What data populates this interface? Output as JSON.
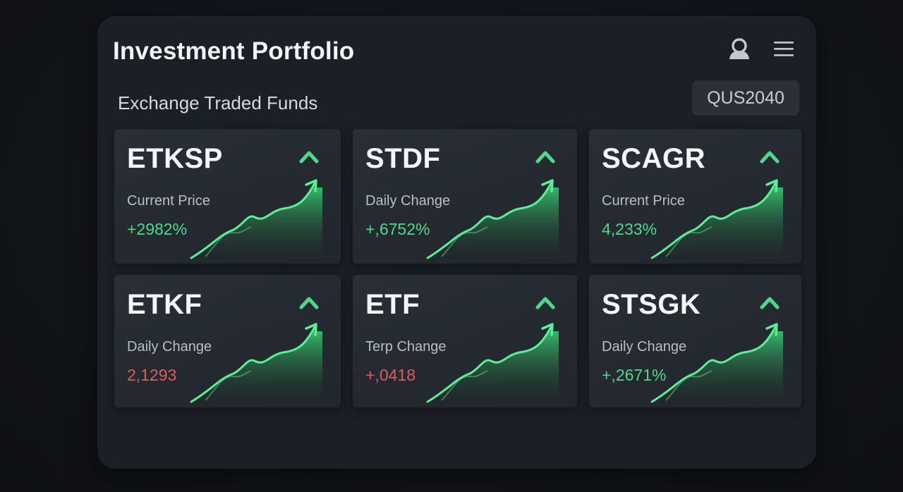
{
  "header": {
    "title": "Investment Portfolio",
    "user_icon": "user-icon",
    "menu_icon": "hamburger-menu-icon"
  },
  "section": {
    "title": "Exchange Traded Funds",
    "code": "QUS2040"
  },
  "colors": {
    "positive": "#4fd88a",
    "negative": "#e25b5b",
    "chart_fill": "#2fb866",
    "chart_line": "#5cef95"
  },
  "funds": [
    {
      "ticker": "ETKSP",
      "label": "Current Price",
      "value": "+2982%",
      "trend": "positive",
      "icon": "chevron-up-icon"
    },
    {
      "ticker": "STDF",
      "label": "Daily Change",
      "value": "+,6752%",
      "trend": "positive",
      "icon": "chevron-up-icon"
    },
    {
      "ticker": "SCAGR",
      "label": "Current Price",
      "value": "4,233%",
      "trend": "positive",
      "icon": "chevron-up-icon"
    },
    {
      "ticker": "ETKF",
      "label": "Daily Change",
      "value": "2,1293",
      "trend": "negative",
      "icon": "chevron-up-icon"
    },
    {
      "ticker": "ETF",
      "label": "Terp Change",
      "value": "+,0418",
      "trend": "negative",
      "icon": "chevron-up-icon"
    },
    {
      "ticker": "STSGK",
      "label": "Daily Change",
      "value": "+,2671%",
      "trend": "positive",
      "icon": "chevron-up-icon"
    }
  ]
}
